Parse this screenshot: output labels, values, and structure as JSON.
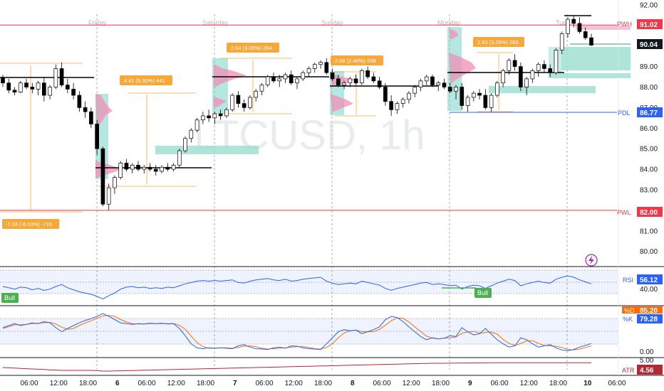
{
  "chart_data": {
    "type": "candlestick",
    "symbol_watermark": "LTCUSD, 1h",
    "colors": {
      "up": "#ffffff",
      "down": "#000000",
      "wick": "#000000",
      "grid": "#e0e3eb",
      "accent_orange": "#f7a83a",
      "pwh_red": "#f23645",
      "pdl_blue": "#2962ff",
      "profile_teal": "#76d4c9",
      "profile_pink": "#f08fb4",
      "fvg_green": "#9bdfcf",
      "rsi": "#2962ff",
      "stoch_k": "#2962ff",
      "stoch_d": "#ff6d00",
      "atr": "#b22833"
    },
    "price_axis": {
      "ticks": [
        "92.00",
        "91.00",
        "89.00",
        "88.00",
        "87.00",
        "86.00",
        "85.00",
        "84.00",
        "83.00",
        "82.00",
        "81.00",
        "80.00"
      ],
      "min": 79.4,
      "max": 92.1
    },
    "day_labels": [
      "Friday",
      "Saturday",
      "Sunday",
      "Monday",
      "Tue"
    ],
    "time_axis": [
      "06:00",
      "12:00",
      "18:00",
      "6",
      "06:00",
      "12:00",
      "18:00",
      "7",
      "06:00",
      "12:00",
      "18:00",
      "8",
      "06:00",
      "12:00",
      "18:00",
      "9",
      "06:00",
      "12:00",
      "18:00",
      "10",
      "06:00"
    ],
    "levels": [
      {
        "label": "PWH",
        "value": "91.02",
        "price": 91.02
      },
      {
        "label": "PDL",
        "value": "86.77",
        "price": 86.77
      },
      {
        "label": "PWL",
        "value": "82.00",
        "price": 82.0
      }
    ],
    "last_price": "90.04",
    "measure_boxes": [
      {
        "text": "-7.16 (-8.03%) -716"
      },
      {
        "text": "4.41 (5.30%) 441"
      },
      {
        "text": "2.64 (3.05%) 264"
      },
      {
        "text": "2.08 (2.40%) 208"
      },
      {
        "text": "2.83 (3.26%) 283"
      }
    ],
    "candles": [
      [
        88.45,
        88.6,
        88.0,
        88.2
      ],
      [
        88.2,
        88.4,
        87.7,
        87.85
      ],
      [
        87.85,
        88.0,
        87.6,
        87.75
      ],
      [
        87.75,
        88.3,
        87.7,
        88.2
      ],
      [
        88.2,
        88.4,
        87.9,
        88.0
      ],
      [
        88.0,
        88.2,
        87.7,
        87.9
      ],
      [
        87.9,
        88.3,
        87.6,
        88.2
      ],
      [
        88.2,
        88.5,
        87.3,
        87.6
      ],
      [
        87.6,
        88.1,
        87.4,
        88.0
      ],
      [
        88.0,
        89.1,
        87.9,
        88.9
      ],
      [
        88.9,
        89.2,
        88.0,
        88.1
      ],
      [
        88.1,
        88.4,
        87.7,
        87.9
      ],
      [
        87.9,
        88.2,
        87.4,
        87.6
      ],
      [
        87.6,
        87.8,
        86.8,
        87.0
      ],
      [
        87.0,
        87.3,
        86.5,
        86.8
      ],
      [
        86.8,
        87.0,
        86.0,
        86.2
      ],
      [
        86.2,
        86.4,
        84.7,
        85.0
      ],
      [
        85.0,
        85.1,
        82.2,
        82.3
      ],
      [
        82.3,
        83.3,
        82.0,
        83.1
      ],
      [
        83.1,
        83.7,
        82.8,
        83.6
      ],
      [
        83.6,
        84.4,
        83.5,
        84.3
      ],
      [
        84.3,
        84.5,
        83.9,
        84.0
      ],
      [
        84.0,
        84.3,
        83.8,
        84.2
      ],
      [
        84.2,
        84.4,
        83.9,
        84.0
      ],
      [
        84.0,
        84.2,
        83.8,
        84.1
      ],
      [
        84.1,
        84.3,
        83.9,
        84.0
      ],
      [
        84.0,
        84.2,
        83.7,
        83.9
      ],
      [
        83.9,
        84.2,
        83.8,
        84.1
      ],
      [
        84.1,
        84.3,
        83.9,
        84.0
      ],
      [
        84.0,
        84.3,
        83.9,
        84.2
      ],
      [
        84.2,
        85.0,
        84.1,
        84.9
      ],
      [
        84.9,
        85.6,
        84.8,
        85.5
      ],
      [
        85.5,
        86.0,
        85.3,
        85.9
      ],
      [
        85.9,
        86.5,
        85.8,
        86.4
      ],
      [
        86.4,
        86.8,
        86.2,
        86.6
      ],
      [
        86.6,
        86.9,
        86.3,
        86.5
      ],
      [
        86.5,
        86.8,
        86.2,
        86.7
      ],
      [
        86.7,
        86.9,
        86.4,
        86.6
      ],
      [
        86.6,
        87.0,
        86.5,
        86.9
      ],
      [
        86.9,
        87.7,
        86.8,
        87.6
      ],
      [
        87.6,
        87.8,
        87.0,
        87.2
      ],
      [
        87.2,
        87.4,
        86.8,
        87.0
      ],
      [
        87.0,
        87.6,
        86.9,
        87.5
      ],
      [
        87.5,
        87.9,
        87.3,
        87.8
      ],
      [
        87.8,
        88.2,
        87.6,
        88.1
      ],
      [
        88.1,
        88.6,
        88.0,
        88.5
      ],
      [
        88.5,
        88.7,
        88.2,
        88.3
      ],
      [
        88.3,
        88.6,
        88.0,
        88.4
      ],
      [
        88.4,
        88.7,
        88.2,
        88.6
      ],
      [
        88.6,
        88.8,
        88.1,
        88.2
      ],
      [
        88.2,
        88.5,
        87.9,
        88.4
      ],
      [
        88.4,
        88.8,
        88.3,
        88.7
      ],
      [
        88.7,
        89.0,
        88.5,
        88.9
      ],
      [
        88.9,
        89.2,
        88.7,
        89.1
      ],
      [
        89.1,
        89.3,
        88.9,
        89.2
      ],
      [
        89.2,
        89.4,
        88.6,
        88.7
      ],
      [
        88.7,
        88.9,
        88.3,
        88.4
      ],
      [
        88.4,
        88.6,
        88.0,
        88.1
      ],
      [
        88.1,
        88.3,
        87.9,
        88.2
      ],
      [
        88.2,
        88.5,
        88.0,
        88.4
      ],
      [
        88.4,
        88.6,
        88.1,
        88.2
      ],
      [
        88.2,
        88.9,
        88.1,
        88.8
      ],
      [
        88.8,
        89.0,
        88.4,
        88.5
      ],
      [
        88.5,
        88.7,
        88.2,
        88.3
      ],
      [
        88.3,
        88.5,
        87.9,
        88.0
      ],
      [
        88.0,
        88.2,
        87.1,
        87.3
      ],
      [
        87.3,
        87.6,
        86.6,
        86.9
      ],
      [
        86.9,
        87.3,
        86.7,
        87.2
      ],
      [
        87.2,
        87.5,
        87.0,
        87.4
      ],
      [
        87.4,
        87.8,
        87.2,
        87.7
      ],
      [
        87.7,
        88.1,
        87.5,
        88.0
      ],
      [
        88.0,
        88.4,
        87.8,
        88.3
      ],
      [
        88.3,
        88.6,
        88.1,
        88.5
      ],
      [
        88.5,
        88.6,
        88.0,
        88.1
      ],
      [
        88.1,
        88.3,
        87.8,
        88.2
      ],
      [
        88.2,
        88.4,
        87.9,
        88.0
      ],
      [
        88.0,
        88.2,
        87.7,
        87.8
      ],
      [
        87.8,
        88.1,
        87.4,
        88.0
      ],
      [
        88.0,
        88.2,
        86.9,
        87.1
      ],
      [
        87.1,
        87.6,
        86.8,
        87.5
      ],
      [
        87.5,
        87.8,
        87.3,
        87.7
      ],
      [
        87.7,
        87.9,
        87.4,
        87.6
      ],
      [
        87.6,
        87.9,
        86.9,
        87.0
      ],
      [
        87.0,
        87.7,
        86.8,
        87.6
      ],
      [
        87.6,
        88.3,
        87.5,
        88.2
      ],
      [
        88.2,
        88.9,
        88.0,
        88.8
      ],
      [
        88.8,
        89.4,
        88.6,
        89.3
      ],
      [
        89.3,
        89.6,
        88.8,
        89.0
      ],
      [
        89.0,
        89.2,
        87.8,
        88.0
      ],
      [
        88.0,
        88.5,
        87.6,
        88.4
      ],
      [
        88.4,
        88.9,
        88.2,
        88.8
      ],
      [
        88.8,
        89.2,
        88.5,
        89.1
      ],
      [
        89.1,
        89.3,
        88.7,
        88.9
      ],
      [
        88.9,
        89.1,
        88.5,
        88.7
      ],
      [
        88.7,
        89.9,
        88.6,
        89.8
      ],
      [
        89.8,
        90.7,
        89.6,
        90.6
      ],
      [
        90.6,
        91.4,
        90.4,
        91.3
      ],
      [
        91.3,
        91.5,
        90.9,
        91.1
      ],
      [
        91.1,
        91.4,
        90.6,
        90.7
      ],
      [
        90.7,
        90.9,
        90.3,
        90.4
      ],
      [
        90.4,
        90.6,
        90.0,
        90.04
      ]
    ],
    "indicators": [
      {
        "name": "RSI",
        "value": "56.12",
        "levels": [
          "40.00"
        ]
      },
      {
        "name": "%D",
        "value": "85.20"
      },
      {
        "name": "%K",
        "value": "79.28",
        "levels": [
          "0.00"
        ]
      },
      {
        "name": "ATR",
        "value": "4.56",
        "levels": [
          "5.00"
        ]
      }
    ],
    "rsi_values": [
      52,
      50,
      48,
      51,
      50,
      47,
      49,
      46,
      48,
      52,
      55,
      50,
      47,
      44,
      42,
      40,
      37,
      33,
      38,
      42,
      48,
      51,
      52,
      50,
      51,
      49,
      50,
      49,
      51,
      50,
      53,
      56,
      58,
      60,
      61,
      60,
      61,
      60,
      61,
      62,
      58,
      57,
      60,
      62,
      63,
      64,
      62,
      61,
      63,
      60,
      61,
      63,
      64,
      65,
      66,
      60,
      57,
      55,
      56,
      57,
      56,
      60,
      58,
      56,
      54,
      49,
      46,
      49,
      51,
      53,
      55,
      57,
      58,
      55,
      56,
      55,
      53,
      54,
      48,
      52,
      54,
      53,
      49,
      53,
      57,
      60,
      63,
      61,
      53,
      56,
      58,
      60,
      58,
      57,
      63,
      66,
      68,
      66,
      62,
      59,
      56
    ],
    "stoch_k": [
      40,
      35,
      30,
      35,
      32,
      28,
      30,
      25,
      28,
      40,
      50,
      42,
      35,
      28,
      22,
      18,
      12,
      5,
      12,
      20,
      28,
      30,
      32,
      30,
      31,
      29,
      30,
      29,
      31,
      30,
      42,
      60,
      80,
      90,
      92,
      90,
      91,
      90,
      91,
      92,
      85,
      82,
      88,
      92,
      93,
      94,
      90,
      88,
      91,
      85,
      86,
      90,
      92,
      93,
      94,
      80,
      65,
      50,
      45,
      48,
      46,
      55,
      50,
      45,
      38,
      20,
      12,
      15,
      25,
      38,
      50,
      62,
      70,
      65,
      68,
      66,
      60,
      62,
      40,
      50,
      58,
      55,
      42,
      56,
      70,
      80,
      88,
      85,
      65,
      70,
      80,
      88,
      85,
      82,
      90,
      95,
      97,
      94,
      88,
      84,
      79.28
    ],
    "stoch_d": [
      42,
      38,
      33,
      33,
      32,
      30,
      29,
      28,
      27,
      31,
      39,
      44,
      42,
      35,
      28,
      23,
      17,
      11,
      10,
      12,
      20,
      26,
      30,
      31,
      31,
      30,
      30,
      30,
      30,
      30,
      34,
      44,
      61,
      77,
      87,
      91,
      91,
      90,
      90,
      91,
      89,
      86,
      85,
      87,
      91,
      93,
      92,
      91,
      90,
      88,
      87,
      87,
      89,
      92,
      93,
      89,
      80,
      65,
      53,
      48,
      46,
      50,
      50,
      50,
      44,
      34,
      23,
      16,
      17,
      26,
      38,
      50,
      61,
      66,
      68,
      66,
      65,
      63,
      54,
      51,
      49,
      54,
      52,
      51,
      56,
      69,
      79,
      84,
      79,
      73,
      72,
      79,
      84,
      85,
      86,
      89,
      94,
      95,
      93,
      89,
      85.2
    ],
    "atr_values": [
      4.9,
      4.92,
      4.94,
      4.96,
      4.98,
      5.0,
      5.02,
      5.04,
      5.06,
      5.08,
      5.1,
      5.1,
      5.1,
      5.1,
      5.1,
      5.1,
      5.12,
      5.15,
      5.15,
      5.14,
      5.13,
      5.12,
      5.11,
      5.1,
      5.09,
      5.08,
      5.07,
      5.06,
      5.05,
      5.04,
      5.03,
      5.02,
      5.01,
      5.0,
      4.99,
      4.98,
      4.97,
      4.96,
      4.95,
      4.94,
      4.93,
      4.92,
      4.91,
      4.9,
      4.89,
      4.88,
      4.87,
      4.86,
      4.85,
      4.84,
      4.83,
      4.82,
      4.81,
      4.8,
      4.79,
      4.78,
      4.77,
      4.76,
      4.75,
      4.74,
      4.73,
      4.72,
      4.71,
      4.7,
      4.69,
      4.68,
      4.67,
      4.66,
      4.65,
      4.64,
      4.63,
      4.62,
      4.61,
      4.6,
      4.6,
      4.6,
      4.59,
      4.59,
      4.58,
      4.58,
      4.57,
      4.57,
      4.57,
      4.56,
      4.56,
      4.56,
      4.56,
      4.56,
      4.56,
      4.56,
      4.56,
      4.56,
      4.56,
      4.56,
      4.56,
      4.56,
      4.56,
      4.56,
      4.56,
      4.56,
      4.56
    ]
  },
  "badges": [
    {
      "text": "Bull"
    },
    {
      "text": "Bull"
    }
  ]
}
